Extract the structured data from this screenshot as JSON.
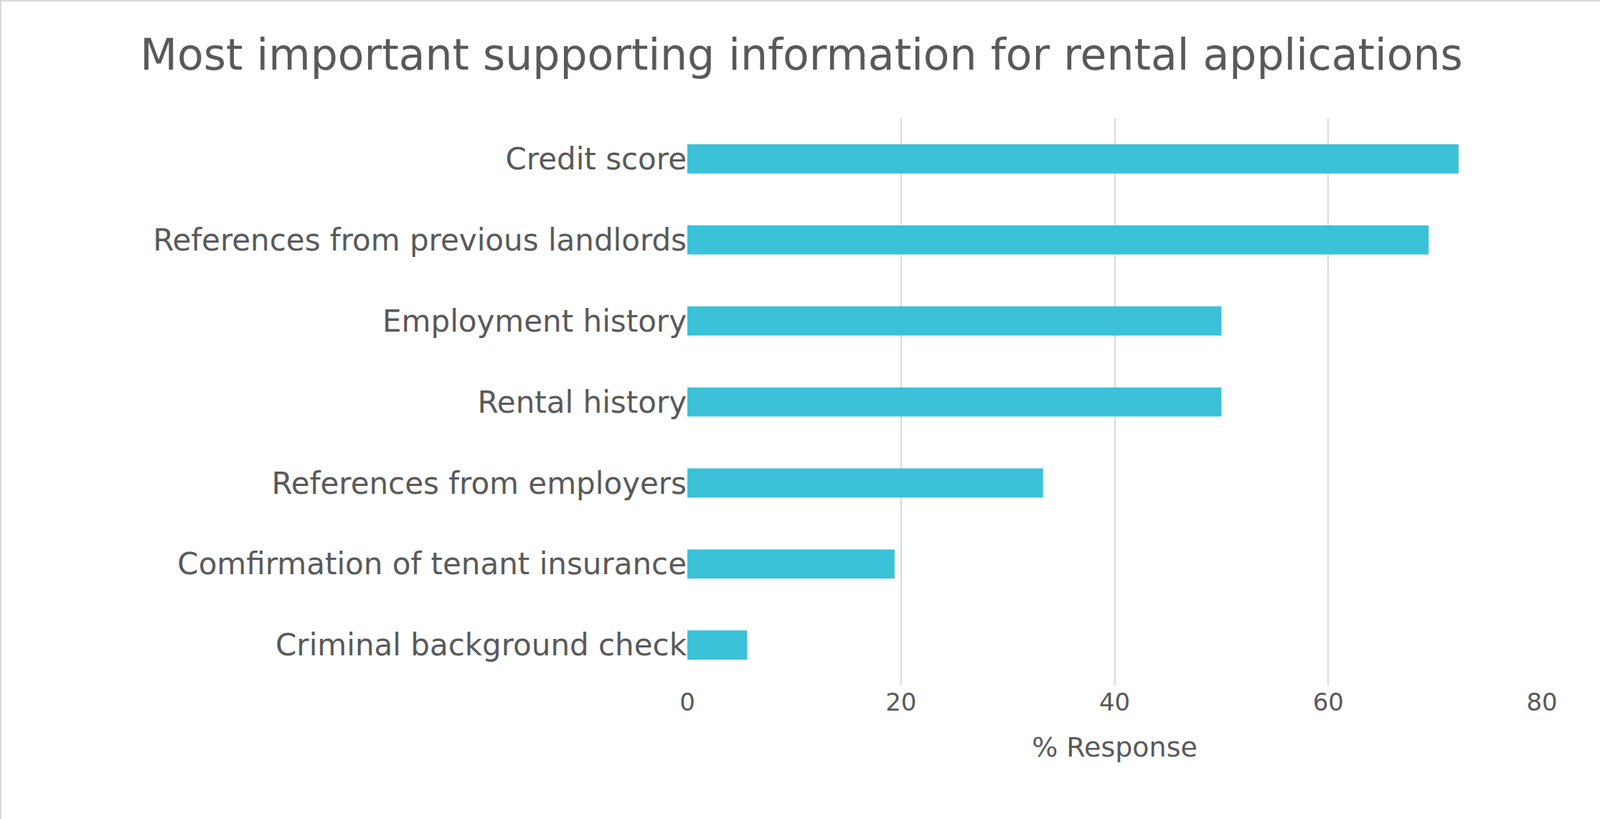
{
  "chart_data": {
    "type": "bar",
    "orientation": "horizontal",
    "title": "Most important supporting information for rental applications",
    "x_label": "% Response",
    "categories": [
      "Credit score",
      "References from previous landlords",
      "Employment history",
      "Rental history",
      "References from employers",
      "Comfirmation of tenant insurance",
      "Criminal background check"
    ],
    "values": [
      72.2,
      69.4,
      50,
      50,
      33.3,
      19.4,
      5.6
    ],
    "color": "#3bc1d8",
    "xlim": [
      0,
      80
    ],
    "xticks": [
      0,
      20,
      40,
      60,
      80
    ],
    "grid": true
  }
}
